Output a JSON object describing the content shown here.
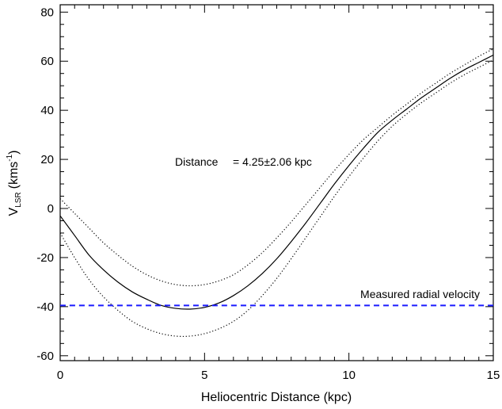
{
  "chart_data": {
    "type": "line",
    "xlabel": "Heliocentric Distance (kpc)",
    "ylabel": {
      "base": "V",
      "sub": "LSR",
      "unit": "(kms",
      "sup": "-1",
      "close": ")"
    },
    "xlim": [
      0,
      15
    ],
    "ylim": [
      -62,
      83
    ],
    "x_ticks": [
      0,
      5,
      10,
      15
    ],
    "y_ticks": [
      -60,
      -40,
      -20,
      0,
      20,
      40,
      60,
      80
    ],
    "grid": false,
    "annotation": {
      "label": "Distance",
      "value": "= 4.25±2.06  kpc"
    },
    "series": [
      {
        "style": "solid",
        "color": "#000000",
        "x": [
          0,
          0.5,
          1,
          1.5,
          2,
          2.5,
          3,
          3.5,
          4,
          4.5,
          5,
          5.5,
          6,
          6.5,
          7,
          7.5,
          8,
          8.5,
          9,
          9.5,
          10,
          10.5,
          11,
          11.5,
          12,
          12.5,
          13,
          13.5,
          14,
          14.5,
          15
        ],
        "y": [
          -3,
          -11,
          -19,
          -25,
          -30,
          -34,
          -37,
          -39.5,
          -40.7,
          -41,
          -40.3,
          -38.5,
          -35.5,
          -31.5,
          -26.5,
          -20.5,
          -13.5,
          -6,
          2,
          10,
          17.5,
          24.5,
          31,
          36,
          40.5,
          45,
          49,
          53,
          56.5,
          59.5,
          62.5
        ]
      },
      {
        "style": "dotted",
        "color": "#000000",
        "x": [
          0,
          0.5,
          1,
          1.5,
          2,
          2.5,
          3,
          3.5,
          4,
          4.5,
          5,
          5.5,
          6,
          6.5,
          7,
          7.5,
          8,
          8.5,
          9,
          9.5,
          10,
          10.5,
          11,
          11.5,
          12,
          12.5,
          13,
          13.5,
          14,
          14.5,
          15
        ],
        "y": [
          4,
          -2,
          -8,
          -14,
          -19,
          -23.5,
          -27,
          -29.5,
          -31,
          -31.5,
          -31,
          -29.5,
          -27,
          -23,
          -18,
          -12,
          -5.5,
          1.5,
          8.5,
          15.5,
          22,
          28,
          33,
          38,
          42.5,
          47,
          51,
          55,
          58.5,
          62,
          65
        ]
      },
      {
        "style": "dotted",
        "color": "#000000",
        "x": [
          0,
          0.5,
          1,
          1.5,
          2,
          2.5,
          3,
          3.5,
          4,
          4.5,
          5,
          5.5,
          6,
          6.5,
          7,
          7.5,
          8,
          8.5,
          9,
          9.5,
          10,
          10.5,
          11,
          11.5,
          12,
          12.5,
          13,
          13.5,
          14,
          14.5,
          15
        ],
        "y": [
          -10,
          -20,
          -29,
          -36,
          -41.5,
          -46,
          -49,
          -51,
          -52,
          -52,
          -51,
          -49,
          -46,
          -41.5,
          -35.5,
          -28.5,
          -20.5,
          -12,
          -3.5,
          5,
          13,
          20.5,
          27.5,
          33.5,
          38.5,
          43,
          47,
          51,
          54.5,
          57.5,
          60.5
        ]
      },
      {
        "name": "Measured radial velocity",
        "style": "dashed",
        "color": "#1a1aff",
        "x": [
          0,
          15
        ],
        "y": [
          -39.5,
          -39.5
        ]
      }
    ]
  }
}
